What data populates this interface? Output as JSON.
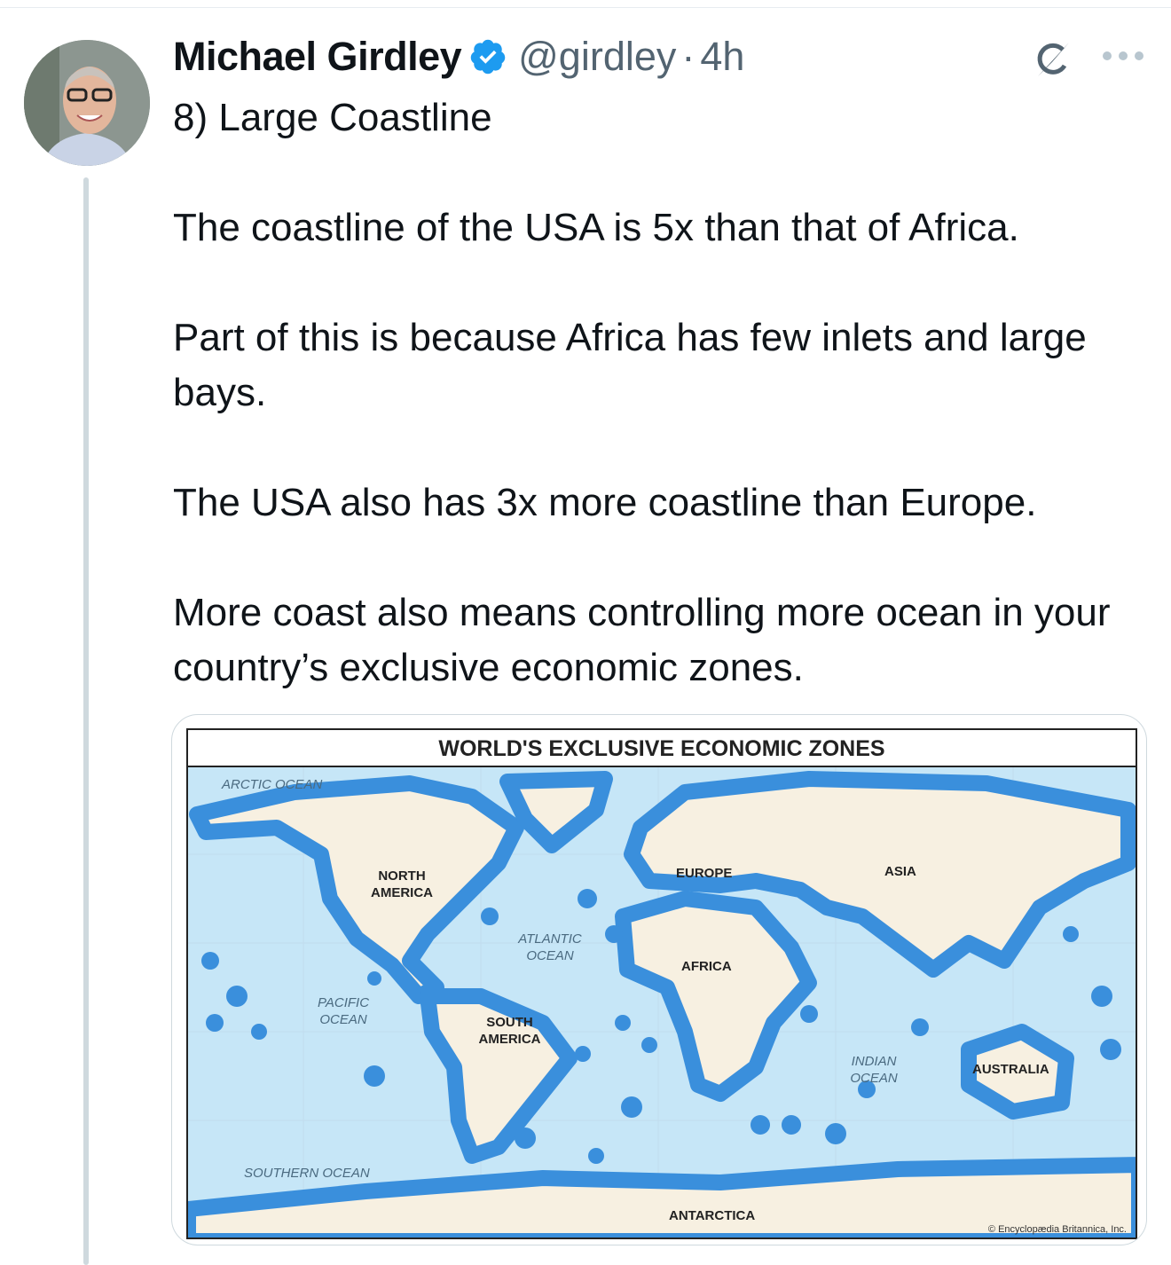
{
  "tweet": {
    "author_name": "Michael Girdley",
    "verified": true,
    "handle": "@girdley",
    "separator": "·",
    "time": "4h",
    "paragraphs": [
      "8) Large Coastline",
      "The coastline of the USA is 5x than that of Africa.",
      "Part of this is because Africa has few inlets and large bays.",
      "The USA also has 3x more coastline than Europe.",
      "More coast also means controlling more ocean in your country’s exclusive economic zones."
    ],
    "icons": {
      "verified": "verified-badge-icon",
      "grok": "grok-icon",
      "more": "more-icon"
    },
    "colors": {
      "verified": "#1d9bf0",
      "thread_line": "#cfd9de",
      "secondary_text": "#536471"
    }
  },
  "map": {
    "title": "WORLD'S EXCLUSIVE ECONOMIC ZONES",
    "continents": [
      "NORTH AMERICA",
      "EUROPE",
      "ASIA",
      "AFRICA",
      "SOUTH AMERICA",
      "AUSTRALIA",
      "ANTARCTICA"
    ],
    "oceans": [
      "ARCTIC OCEAN",
      "ATLANTIC OCEAN",
      "PACIFIC OCEAN",
      "INDIAN OCEAN",
      "SOUTHERN OCEAN"
    ],
    "credit": "© Encyclopædia Britannica, Inc.",
    "colors": {
      "ocean": "#c6e6f7",
      "eez": "#3a8fdc",
      "land": "#f7f0e1"
    }
  }
}
